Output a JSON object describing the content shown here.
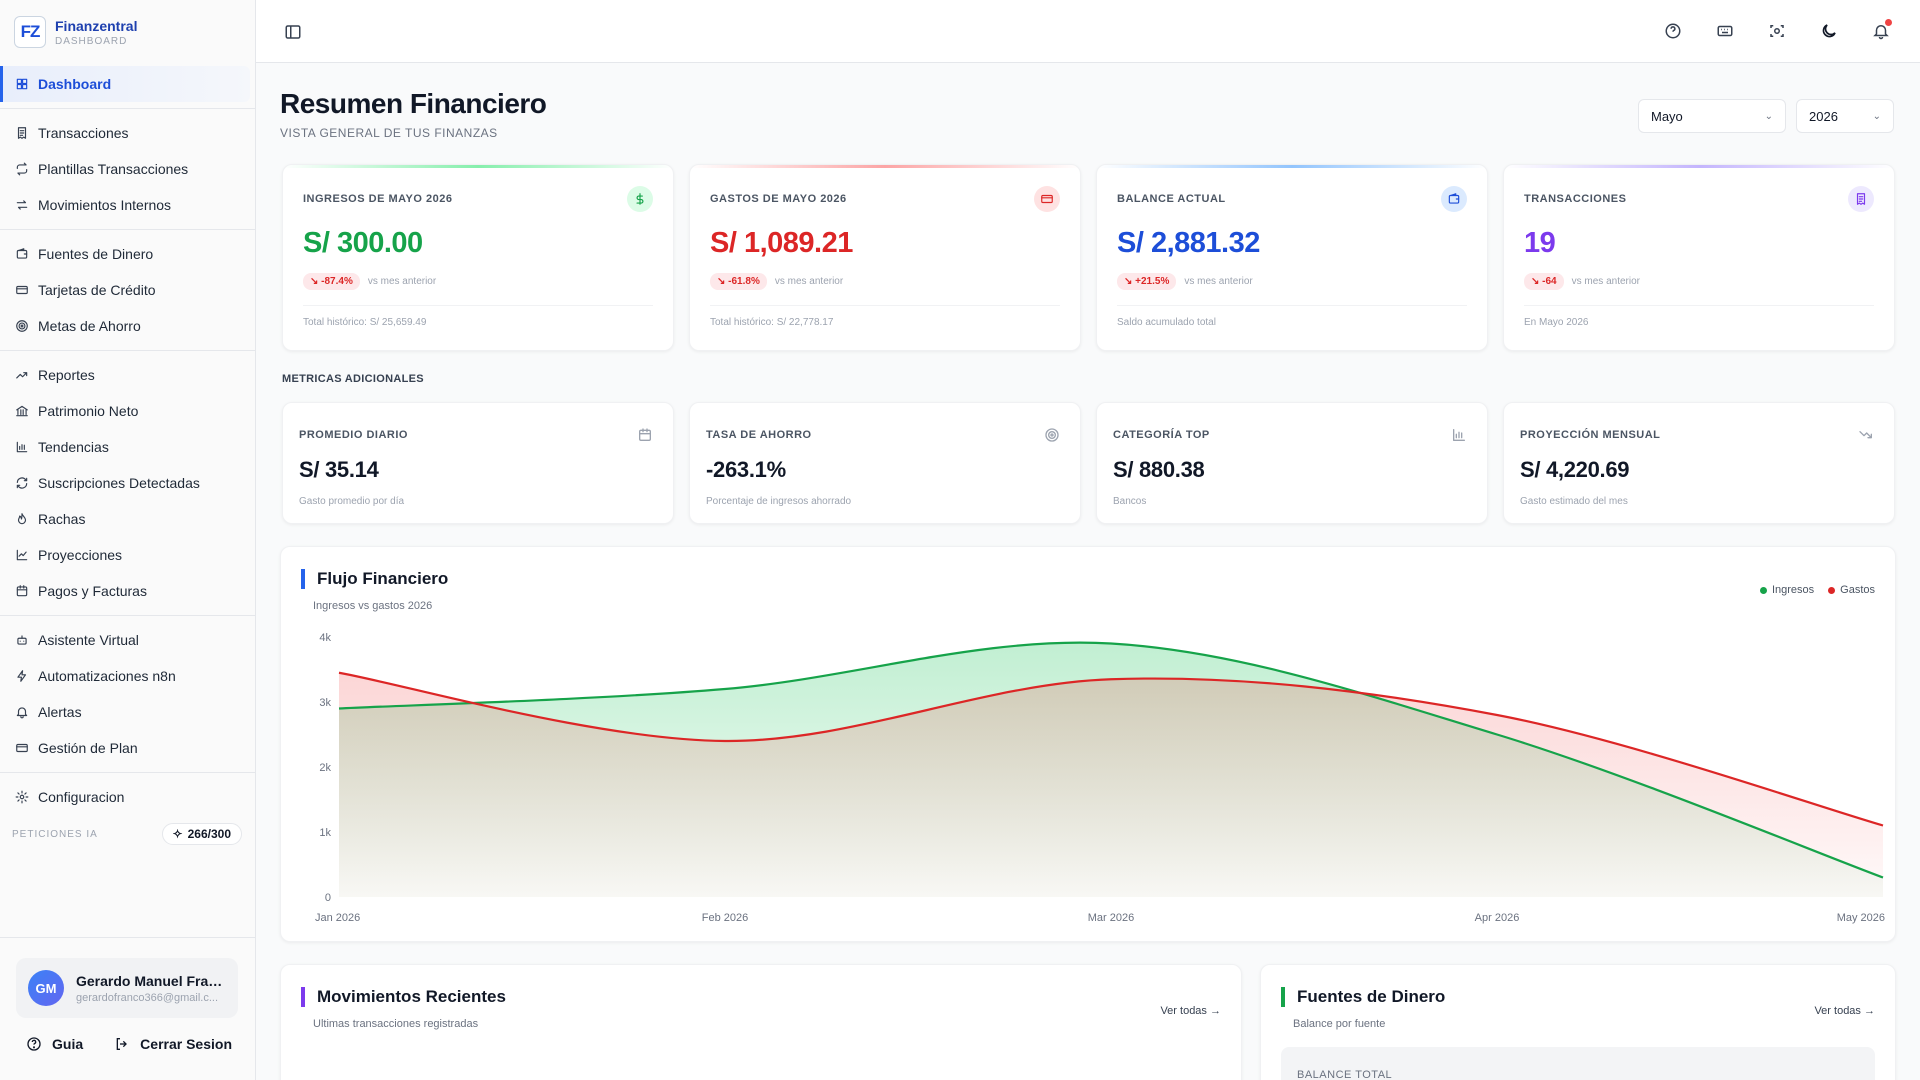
{
  "app": {
    "name": "Finanzentral",
    "subtitle": "DASHBOARD",
    "logo": "FZ"
  },
  "sidebar": {
    "groups": [
      [
        {
          "label": "Dashboard",
          "icon": "grid-icon",
          "active": true
        }
      ],
      [
        {
          "label": "Transacciones",
          "icon": "receipt-icon"
        },
        {
          "label": "Plantillas Transacciones",
          "icon": "repeat-icon"
        },
        {
          "label": "Movimientos Internos",
          "icon": "arrows-icon"
        }
      ],
      [
        {
          "label": "Fuentes de Dinero",
          "icon": "wallet-icon"
        },
        {
          "label": "Tarjetas de Crédito",
          "icon": "credit-card-icon"
        },
        {
          "label": "Metas de Ahorro",
          "icon": "target-icon"
        }
      ],
      [
        {
          "label": "Reportes",
          "icon": "trending-up-icon"
        },
        {
          "label": "Patrimonio Neto",
          "icon": "bank-icon"
        },
        {
          "label": "Tendencias",
          "icon": "bar-chart-icon"
        },
        {
          "label": "Suscripciones Detectadas",
          "icon": "refresh-icon"
        },
        {
          "label": "Rachas",
          "icon": "flame-icon"
        },
        {
          "label": "Proyecciones",
          "icon": "line-chart-icon"
        },
        {
          "label": "Pagos y Facturas",
          "icon": "calendar-icon"
        }
      ],
      [
        {
          "label": "Asistente Virtual",
          "icon": "bot-icon"
        },
        {
          "label": "Automatizaciones n8n",
          "icon": "bolt-icon"
        },
        {
          "label": "Alertas",
          "icon": "bell-icon"
        },
        {
          "label": "Gestión de Plan",
          "icon": "credit-card-icon"
        }
      ],
      [
        {
          "label": "Configuracion",
          "icon": "gear-icon"
        }
      ]
    ],
    "ia_label": "PETICIONES IA",
    "ia_count": "266/300"
  },
  "user": {
    "initials": "GM",
    "name": "Gerardo Manuel Fran...",
    "email": "gerardofranco366@gmail.c..."
  },
  "footer": {
    "guide": "Guia",
    "logout": "Cerrar Sesion"
  },
  "header": {
    "title": "Resumen Financiero",
    "subtitle": "VISTA GENERAL DE TUS FINANZAS",
    "month": "Mayo",
    "year": "2026"
  },
  "kpis": [
    {
      "label": "INGRESOS DE MAYO 2026",
      "value": "S/ 300.00",
      "change": "↘ -87.4%",
      "vs": "vs mes anterior",
      "foot": "Total histórico: S/ 25,659.49",
      "color": "#16a34a",
      "bar": "#86efac",
      "icon": "dollar-icon",
      "icon_bg": "#dcfce7"
    },
    {
      "label": "GASTOS DE MAYO 2026",
      "value": "S/ 1,089.21",
      "change": "↘ -61.8%",
      "vs": "vs mes anterior",
      "foot": "Total histórico: S/ 22,778.17",
      "color": "#dc2626",
      "bar": "#fca5a5",
      "icon": "card-icon",
      "icon_bg": "#fee2e2"
    },
    {
      "label": "BALANCE ACTUAL",
      "value": "S/ 2,881.32",
      "change": "↘ +21.5%",
      "vs": "vs mes anterior",
      "foot": "Saldo acumulado total",
      "color": "#1d4ed8",
      "bar": "#93c5fd",
      "icon": "wallet-icon",
      "icon_bg": "#dbeafe"
    },
    {
      "label": "TRANSACCIONES",
      "value": "19",
      "change": "↘ -64",
      "vs": "vs mes anterior",
      "foot": "En Mayo 2026",
      "color": "#7c3aed",
      "bar": "#c4b5fd",
      "icon": "receipt-icon",
      "icon_bg": "#ede9fe"
    }
  ],
  "metrics_title": "METRICAS ADICIONALES",
  "metrics": [
    {
      "label": "PROMEDIO DIARIO",
      "value": "S/ 35.14",
      "foot": "Gasto promedio por día",
      "icon": "calendar-icon"
    },
    {
      "label": "TASA DE AHORRO",
      "value": "-263.1%",
      "foot": "Porcentaje de ingresos ahorrado",
      "icon": "target-icon"
    },
    {
      "label": "CATEGORÍA TOP",
      "value": "S/ 880.38",
      "foot": "Bancos",
      "icon": "bar-chart-icon"
    },
    {
      "label": "PROYECCIÓN MENSUAL",
      "value": "S/ 4,220.69",
      "foot": "Gasto estimado del mes",
      "icon": "trending-down-icon"
    }
  ],
  "flow": {
    "title": "Flujo Financiero",
    "subtitle": "Ingresos vs gastos 2026"
  },
  "chart_data": {
    "type": "area",
    "categories": [
      "Jan 2026",
      "Feb 2026",
      "Mar 2026",
      "Apr 2026",
      "May 2026"
    ],
    "series": [
      {
        "name": "Ingresos",
        "values": [
          2900,
          3200,
          3900,
          2500,
          300
        ],
        "color": "#16a34a"
      },
      {
        "name": "Gastos",
        "values": [
          3450,
          2400,
          3350,
          2800,
          1100
        ],
        "color": "#dc2626"
      }
    ],
    "yticks": [
      "0",
      "1k",
      "2k",
      "3k",
      "4k"
    ],
    "ylim": [
      0,
      4000
    ],
    "legend": "top-right"
  },
  "recent": {
    "title": "Movimientos Recientes",
    "subtitle": "Ultimas transacciones registradas",
    "link": "Ver todas →"
  },
  "sources": {
    "title": "Fuentes de Dinero",
    "subtitle": "Balance por fuente",
    "link": "Ver todas →",
    "balance_label": "BALANCE TOTAL"
  }
}
